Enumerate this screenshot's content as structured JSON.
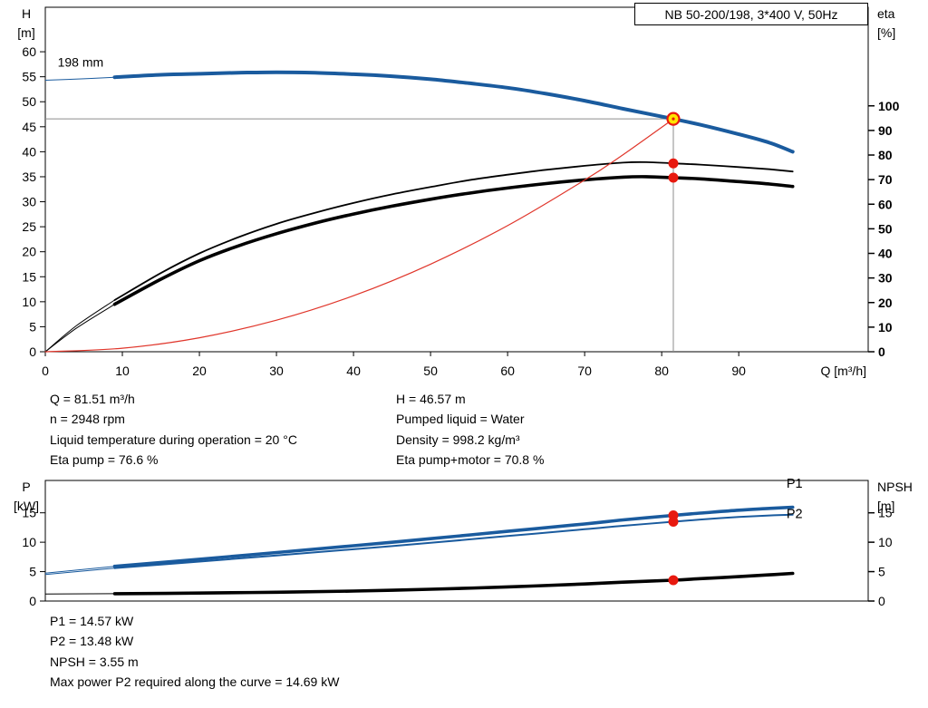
{
  "header": {
    "title_box": "NB 50-200/198, 3*400 V, 50Hz"
  },
  "info": {
    "left": [
      "Q = 81.51 m³/h",
      "n = 2948 rpm",
      "Liquid temperature during operation = 20 °C",
      "Eta pump = 76.6 %"
    ],
    "right": [
      "H = 46.57 m",
      "Pumped liquid = Water",
      "Density = 998.2 kg/m³",
      "Eta pump+motor = 70.8 %"
    ]
  },
  "footer": {
    "lines": [
      "P1 = 14.57 kW",
      "P2 = 13.48 kW",
      "NPSH = 3.55 m",
      "Max power P2 required along the curve = 14.69 kW"
    ]
  },
  "colors": {
    "curve_blue": "#1a5b9e",
    "curve_black": "#000000",
    "curve_red": "#e0362b",
    "marker_red": "#e8190f",
    "marker_yellow": "#ffe400",
    "helper_gray": "#8c8c8c",
    "frame": "#000000"
  },
  "duty_point": {
    "q_m3h": 81.51,
    "h_m": 46.57,
    "eta_pump_pct": 76.6,
    "eta_pump_motor_pct": 70.8,
    "p1_kw": 14.57,
    "p2_kw": 13.48,
    "npsh_m": 3.55,
    "n_rpm": 2948,
    "max_p2_kw": 14.69
  },
  "chart_data": [
    {
      "type": "line",
      "title": "NB 50-200/198, 3*400 V, 50Hz",
      "xlabel": "Q [m³/h]",
      "ylabel_left": [
        "H",
        "[m]"
      ],
      "ylabel_right": [
        "eta",
        "[%]"
      ],
      "xlim": [
        0,
        106.8
      ],
      "x_ticks": [
        0,
        10,
        20,
        30,
        40,
        50,
        60,
        70,
        80,
        90
      ],
      "ylim_left": [
        0,
        68.9
      ],
      "y_ticks_left": [
        0,
        5,
        10,
        15,
        20,
        25,
        30,
        35,
        40,
        45,
        50,
        55,
        60
      ],
      "ylim_right": [
        0,
        140.1
      ],
      "y_ticks_right": [
        0,
        10,
        20,
        30,
        40,
        50,
        60,
        70,
        80,
        90,
        100
      ],
      "right_labels_bold": true,
      "annotations": [
        {
          "text": "198 mm",
          "x": 1.6,
          "y": 57,
          "axis": "left"
        }
      ],
      "series": [
        {
          "name": "eta-pump-curve",
          "axis": "right",
          "color": "#000000",
          "width": 1.8,
          "lead": [
            [
              0,
              0
            ],
            [
              4,
              10.5
            ],
            [
              9,
              21
            ]
          ],
          "points": [
            [
              9,
              21
            ],
            [
              15,
              32
            ],
            [
              20,
              40
            ],
            [
              25,
              46.5
            ],
            [
              30,
              52
            ],
            [
              35,
              56.5
            ],
            [
              40,
              60.5
            ],
            [
              45,
              64
            ],
            [
              50,
              67
            ],
            [
              55,
              69.8
            ],
            [
              60,
              72
            ],
            [
              65,
              74
            ],
            [
              70,
              75.6
            ],
            [
              75,
              76.9
            ],
            [
              78,
              77.1
            ],
            [
              81.51,
              76.6
            ],
            [
              85,
              76.1
            ],
            [
              90,
              75.1
            ],
            [
              94,
              74.2
            ],
            [
              97,
              73.3
            ]
          ]
        },
        {
          "name": "eta-pump-motor-curve",
          "axis": "right",
          "color": "#000000",
          "width": 3.6,
          "lead": [
            [
              0,
              0
            ],
            [
              4,
              9.5
            ],
            [
              9,
              19.3
            ]
          ],
          "points": [
            [
              9,
              19.3
            ],
            [
              15,
              29.5
            ],
            [
              20,
              37
            ],
            [
              25,
              43
            ],
            [
              30,
              48
            ],
            [
              35,
              52.3
            ],
            [
              40,
              56
            ],
            [
              45,
              59.2
            ],
            [
              50,
              62
            ],
            [
              55,
              64.5
            ],
            [
              60,
              66.6
            ],
            [
              65,
              68.4
            ],
            [
              70,
              69.9
            ],
            [
              75,
              71.0
            ],
            [
              78,
              71.2
            ],
            [
              81.51,
              70.8
            ],
            [
              85,
              70.3
            ],
            [
              90,
              69.2
            ],
            [
              94,
              68.2
            ],
            [
              97,
              67.2
            ]
          ]
        },
        {
          "name": "operating-curve",
          "axis": "left",
          "color": "#e0362b",
          "width": 1.2,
          "points": [
            [
              0,
              0
            ],
            [
              10,
              0.7
            ],
            [
              20,
              2.8
            ],
            [
              30,
              6.31
            ],
            [
              40,
              11.21
            ],
            [
              50,
              17.52
            ],
            [
              60,
              25.23
            ],
            [
              70,
              34.34
            ],
            [
              75,
              39.42
            ],
            [
              81.51,
              46.57
            ]
          ]
        },
        {
          "name": "h-curve-198mm",
          "axis": "left",
          "color": "#1a5b9e",
          "width": 4,
          "lead": [
            [
              0,
              54.3
            ],
            [
              5,
              54.6
            ],
            [
              9,
              54.9
            ]
          ],
          "points": [
            [
              9,
              54.9
            ],
            [
              15,
              55.4
            ],
            [
              20,
              55.6
            ],
            [
              25,
              55.8
            ],
            [
              30,
              55.9
            ],
            [
              35,
              55.8
            ],
            [
              40,
              55.5
            ],
            [
              45,
              55.1
            ],
            [
              50,
              54.5
            ],
            [
              55,
              53.7
            ],
            [
              60,
              52.8
            ],
            [
              65,
              51.6
            ],
            [
              70,
              50.2
            ],
            [
              75,
              48.6
            ],
            [
              81.51,
              46.57
            ],
            [
              85,
              45.4
            ],
            [
              90,
              43.5
            ],
            [
              94,
              41.8
            ],
            [
              97,
              40.0
            ]
          ]
        }
      ],
      "helper_lines": [
        {
          "dir": "h",
          "value": 46.57,
          "axis": "left",
          "from": 0,
          "to": 81.51
        },
        {
          "dir": "v",
          "value": 81.51,
          "axis": "left",
          "from": 0,
          "to": 46.57
        }
      ],
      "markers": [
        {
          "name": "duty-point",
          "x": 81.51,
          "y": 46.57,
          "axis": "left",
          "style": "duty"
        },
        {
          "name": "eta-pump-point",
          "x": 81.51,
          "y": 76.6,
          "axis": "right",
          "style": "dot"
        },
        {
          "name": "eta-pump-motor-point",
          "x": 81.51,
          "y": 70.8,
          "axis": "right",
          "style": "dot"
        }
      ]
    },
    {
      "type": "line",
      "title": "",
      "xlabel": "",
      "ylabel_left": [
        "P",
        "[kW]"
      ],
      "ylabel_right": [
        "NPSH",
        "[m]"
      ],
      "xlim": [
        0,
        106.8
      ],
      "x_ticks": [],
      "ylim_left": [
        0,
        20.5
      ],
      "y_ticks_left": [
        0,
        5,
        10,
        15
      ],
      "ylim_right": [
        0,
        20.5
      ],
      "y_ticks_right": [
        0,
        5,
        10,
        15
      ],
      "right_labels_bold": false,
      "series": [
        {
          "name": "p2-curve",
          "axis": "left",
          "color": "#1a5b9e",
          "width": 2,
          "lead": [
            [
              0,
              4.5
            ],
            [
              9,
              5.6
            ]
          ],
          "points": [
            [
              9,
              5.6
            ],
            [
              20,
              6.7
            ],
            [
              30,
              7.75
            ],
            [
              40,
              8.8
            ],
            [
              50,
              9.9
            ],
            [
              60,
              11.05
            ],
            [
              70,
              12.2
            ],
            [
              75,
              12.8
            ],
            [
              81.51,
              13.48
            ],
            [
              85,
              13.85
            ],
            [
              90,
              14.3
            ],
            [
              94,
              14.55
            ],
            [
              97,
              14.69
            ]
          ]
        },
        {
          "name": "p1-curve",
          "axis": "left",
          "color": "#1a5b9e",
          "width": 3.6,
          "lead": [
            [
              0,
              4.75
            ],
            [
              9,
              5.9
            ]
          ],
          "points": [
            [
              9,
              5.9
            ],
            [
              20,
              7.1
            ],
            [
              30,
              8.25
            ],
            [
              40,
              9.4
            ],
            [
              50,
              10.6
            ],
            [
              60,
              11.85
            ],
            [
              70,
              13.1
            ],
            [
              75,
              13.8
            ],
            [
              81.51,
              14.57
            ],
            [
              85,
              14.95
            ],
            [
              90,
              15.45
            ],
            [
              94,
              15.75
            ],
            [
              97,
              15.95
            ]
          ]
        },
        {
          "name": "npsh-curve",
          "axis": "left",
          "color": "#000000",
          "width": 3.6,
          "lead": [
            [
              0,
              1.2
            ],
            [
              9,
              1.25
            ]
          ],
          "points": [
            [
              9,
              1.25
            ],
            [
              20,
              1.35
            ],
            [
              30,
              1.5
            ],
            [
              40,
              1.7
            ],
            [
              50,
              2.0
            ],
            [
              60,
              2.4
            ],
            [
              70,
              2.9
            ],
            [
              75,
              3.2
            ],
            [
              81.51,
              3.55
            ],
            [
              85,
              3.8
            ],
            [
              90,
              4.15
            ],
            [
              94,
              4.45
            ],
            [
              97,
              4.7
            ]
          ]
        }
      ],
      "series_labels": [
        {
          "text": "P1",
          "x": 96.2,
          "y": 20.0,
          "axis": "left",
          "color": "#1a5b9e"
        },
        {
          "text": "P2",
          "x": 96.2,
          "y": 14.9,
          "axis": "left",
          "color": "#1a5b9e"
        }
      ],
      "markers": [
        {
          "name": "p1-point",
          "x": 81.51,
          "y": 14.57,
          "axis": "left",
          "style": "dot"
        },
        {
          "name": "p2-point",
          "x": 81.51,
          "y": 13.48,
          "axis": "left",
          "style": "dot"
        },
        {
          "name": "npsh-point",
          "x": 81.51,
          "y": 3.55,
          "axis": "left",
          "style": "dot"
        }
      ]
    }
  ]
}
